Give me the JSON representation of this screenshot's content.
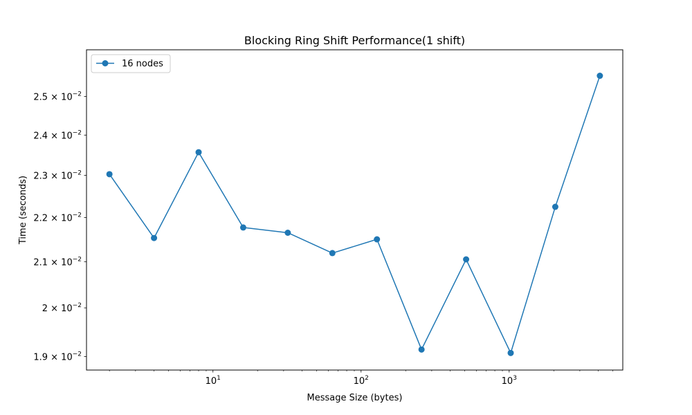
{
  "chart_data": {
    "type": "line",
    "title": "Blocking Ring Shift Performance(1 shift)",
    "xlabel": "Message Size (bytes)",
    "ylabel": "Time (seconds)",
    "xscale": "log",
    "yscale": "log",
    "xlim": [
      1.4,
      5850
    ],
    "ylim": [
      0.01873,
      0.02626
    ],
    "x_major_ticks": [
      {
        "value": 10,
        "base": "10",
        "exp": "1"
      },
      {
        "value": 100,
        "base": "10",
        "exp": "2"
      },
      {
        "value": 1000,
        "base": "10",
        "exp": "3"
      }
    ],
    "y_ticks": [
      {
        "value": 0.019,
        "mant": "1.9",
        "base": "10",
        "exp": "−2"
      },
      {
        "value": 0.02,
        "mant": "2",
        "base": "10",
        "exp": "−2"
      },
      {
        "value": 0.021,
        "mant": "2.1",
        "base": "10",
        "exp": "−2"
      },
      {
        "value": 0.022,
        "mant": "2.2",
        "base": "10",
        "exp": "−2"
      },
      {
        "value": 0.023,
        "mant": "2.3",
        "base": "10",
        "exp": "−2"
      },
      {
        "value": 0.024,
        "mant": "2.4",
        "base": "10",
        "exp": "−2"
      },
      {
        "value": 0.025,
        "mant": "2.5",
        "base": "10",
        "exp": "−2"
      }
    ],
    "grid": false,
    "legend_position": "upper-left",
    "series": [
      {
        "name": "16 nodes",
        "color": "#1f77b4",
        "marker": "circle",
        "x": [
          2,
          4,
          8,
          16,
          32,
          64,
          128,
          256,
          512,
          1024,
          2048,
          4096
        ],
        "y": [
          0.02303,
          0.02153,
          0.02357,
          0.02177,
          0.02165,
          0.02119,
          0.0215,
          0.01914,
          0.02105,
          0.01907,
          0.02225,
          0.02555
        ]
      }
    ]
  }
}
